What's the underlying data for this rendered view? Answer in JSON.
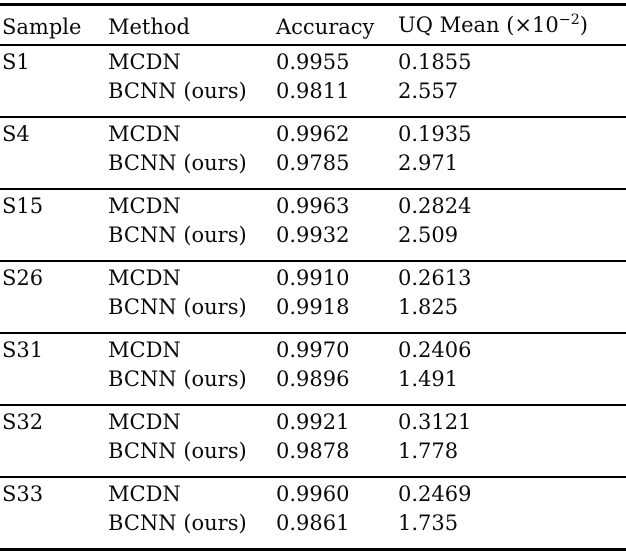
{
  "header": {
    "sample": "Sample",
    "method": "Method",
    "accuracy": "Accuracy",
    "uq_prefix": "UQ Mean (×10",
    "uq_exponent": "−2",
    "uq_suffix": ")"
  },
  "groups": [
    {
      "sample": "S1",
      "rows": [
        {
          "method": "MCDN",
          "accuracy": "0.9955",
          "uq_mean": "0.1855"
        },
        {
          "method": "BCNN (ours)",
          "accuracy": "0.9811",
          "uq_mean": "2.557"
        }
      ]
    },
    {
      "sample": "S4",
      "rows": [
        {
          "method": "MCDN",
          "accuracy": "0.9962",
          "uq_mean": "0.1935"
        },
        {
          "method": "BCNN (ours)",
          "accuracy": "0.9785",
          "uq_mean": "2.971"
        }
      ]
    },
    {
      "sample": "S15",
      "rows": [
        {
          "method": "MCDN",
          "accuracy": "0.9963",
          "uq_mean": "0.2824"
        },
        {
          "method": "BCNN (ours)",
          "accuracy": "0.9932",
          "uq_mean": "2.509"
        }
      ]
    },
    {
      "sample": "S26",
      "rows": [
        {
          "method": "MCDN",
          "accuracy": "0.9910",
          "uq_mean": "0.2613"
        },
        {
          "method": "BCNN (ours)",
          "accuracy": "0.9918",
          "uq_mean": "1.825"
        }
      ]
    },
    {
      "sample": "S31",
      "rows": [
        {
          "method": "MCDN",
          "accuracy": "0.9970",
          "uq_mean": "0.2406"
        },
        {
          "method": "BCNN (ours)",
          "accuracy": "0.9896",
          "uq_mean": "1.491"
        }
      ]
    },
    {
      "sample": "S32",
      "rows": [
        {
          "method": "MCDN",
          "accuracy": "0.9921",
          "uq_mean": "0.3121"
        },
        {
          "method": "BCNN (ours)",
          "accuracy": "0.9878",
          "uq_mean": "1.778"
        }
      ]
    },
    {
      "sample": "S33",
      "rows": [
        {
          "method": "MCDN",
          "accuracy": "0.9960",
          "uq_mean": "0.2469"
        },
        {
          "method": "BCNN (ours)",
          "accuracy": "0.9861",
          "uq_mean": "1.735"
        }
      ]
    }
  ],
  "colors": {
    "text": "#0a0a0a",
    "rule": "#000000",
    "background": "#ffffff"
  }
}
